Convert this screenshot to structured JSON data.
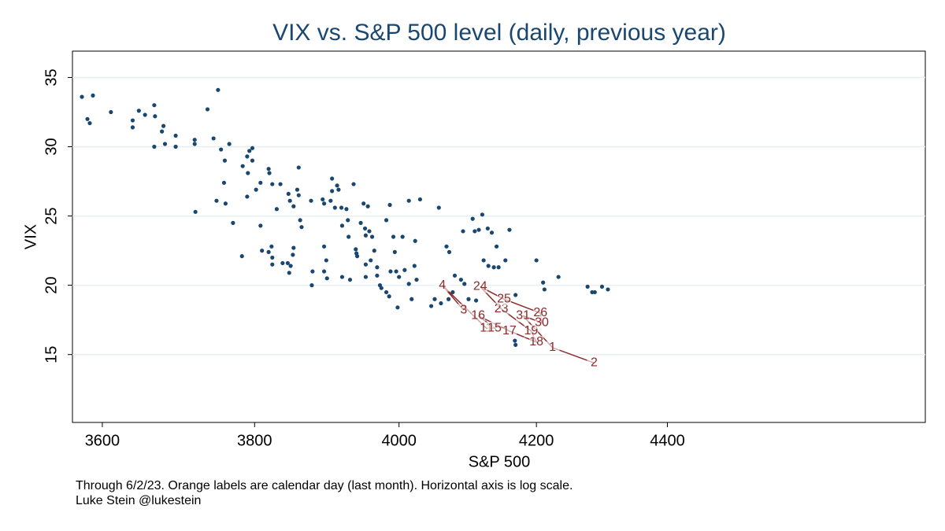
{
  "chart_data": {
    "type": "scatter",
    "title": "VIX vs. S&P 500 level (daily, previous year)",
    "x_label": "S&P 500",
    "y_label": "VIX",
    "notes": [
      "Through 6/2/23. Orange labels are calendar day (last month). Horizontal axis is log scale.",
      "Luke Stein @lukestein"
    ],
    "xscale": "log",
    "grid": true,
    "xlim": [
      3562,
      4822
    ],
    "ylim": [
      10.1,
      36.9
    ],
    "xticks": [
      3600,
      3800,
      4000,
      4200,
      4400
    ],
    "yticks": [
      15,
      20,
      25,
      30,
      35
    ],
    "series": [
      {
        "color": "#1a476f",
        "x": [
          3574,
          3588,
          3581,
          3584,
          3611,
          3639,
          3639,
          3647,
          3655,
          3667,
          3668,
          3677,
          3679,
          3667,
          3681,
          3695,
          3695,
          3720,
          3720,
          3721,
          3737,
          3751,
          3745,
          3755,
          3766,
          3760,
          3759,
          3749,
          3761,
          3771,
          3783,
          3784,
          3790,
          3793,
          3797,
          3797,
          3791,
          3790,
          3802,
          3808,
          3808,
          3819,
          3820,
          3824,
          3810,
          3819,
          3823,
          3824,
          3824,
          3830,
          3835,
          3838,
          3845,
          3846,
          3848,
          3853,
          3853,
          3852,
          3849,
          3847,
          3860,
          3858,
          3860,
          3862,
          3864,
          3877,
          3879,
          3878,
          3893,
          3895,
          3895,
          3898,
          3895,
          3899,
          3906,
          3906,
          3904,
          3910,
          3913,
          3915,
          3919,
          3920,
          3920,
          3926,
          3928,
          3929,
          3931,
          3936,
          3939,
          3940,
          3941,
          3946,
          3950,
          3952,
          3953,
          3953,
          3953,
          3956,
          3958,
          3962,
          3960,
          3965,
          3969,
          3969,
          3973,
          3975,
          3982,
          3982,
          3986,
          3987,
          3988,
          3992,
          3994,
          3996,
          3998,
          4000,
          4005,
          4008,
          4014,
          4014,
          4018,
          4022,
          4023,
          4030,
          4025,
          4046,
          4051,
          4057,
          4060,
          4068,
          4072,
          4071,
          4077,
          4080,
          4089,
          4092,
          4094,
          4100,
          4106,
          4109,
          4111,
          4115,
          4120,
          4122,
          4128,
          4134,
          4129,
          4137,
          4141,
          4144,
          4154,
          4160,
          4169,
          4169,
          4168,
          4200,
          4210,
          4212,
          4233,
          4277,
          4284,
          4288,
          4299,
          4308
        ],
        "y": [
          33.6,
          33.7,
          32.0,
          31.7,
          32.5,
          31.9,
          31.4,
          32.6,
          32.3,
          33.0,
          32.2,
          31.1,
          31.5,
          30.0,
          30.2,
          30.8,
          30.0,
          30.5,
          30.2,
          25.3,
          32.7,
          34.1,
          30.6,
          29.8,
          30.2,
          29.0,
          27.4,
          26.1,
          25.9,
          24.5,
          22.1,
          28.6,
          29.3,
          29.7,
          29.9,
          29.0,
          28.1,
          26.4,
          26.9,
          24.3,
          27.4,
          28.4,
          28.1,
          27.3,
          22.5,
          22.4,
          22.8,
          22.0,
          21.5,
          25.5,
          27.3,
          21.6,
          21.6,
          26.6,
          26.1,
          25.7,
          22.7,
          22.2,
          21.4,
          20.9,
          28.5,
          26.9,
          26.5,
          24.7,
          24.2,
          26.1,
          21.0,
          20.0,
          26.2,
          25.9,
          22.8,
          21.8,
          21.0,
          20.5,
          27.7,
          26.8,
          26.1,
          25.6,
          27.2,
          26.9,
          25.6,
          24.3,
          20.6,
          25.5,
          24.7,
          23.5,
          20.4,
          27.3,
          22.6,
          22.3,
          22.1,
          24.5,
          25.9,
          24.1,
          23.6,
          21.5,
          20.6,
          25.7,
          23.9,
          23.5,
          21.8,
          22.5,
          21.3,
          20.7,
          20.0,
          19.8,
          24.7,
          19.5,
          19.2,
          25.8,
          21.0,
          23.5,
          22.4,
          21.0,
          18.4,
          20.6,
          23.5,
          21.1,
          26.1,
          20.1,
          19.0,
          21.4,
          23.2,
          26.2,
          20.4,
          18.5,
          19.0,
          25.6,
          18.7,
          22.8,
          22.4,
          19.0,
          19.5,
          20.7,
          20.4,
          23.9,
          20.1,
          19.0,
          24.8,
          23.9,
          18.9,
          24.0,
          25.1,
          21.8,
          24.1,
          23.8,
          21.4,
          21.3,
          22.8,
          21.3,
          21.8,
          24.0,
          19.3,
          15.7,
          16.0,
          21.8,
          20.2,
          19.7,
          20.6,
          19.9,
          19.5,
          19.5,
          19.9,
          19.7
        ]
      },
      {
        "color": "#8b2a2a",
        "x": [
          4093,
          4062,
          4126,
          4138,
          4114,
          4160,
          4200,
          4192,
          4148,
          4117,
          4152,
          4206,
          4208,
          4180,
          4224,
          4287
        ],
        "y": [
          18.2,
          20.0,
          16.9,
          16.9,
          17.8,
          16.7,
          15.9,
          16.7,
          18.3,
          19.9,
          19.0,
          18.0,
          17.3,
          17.8,
          15.5,
          14.4
        ],
        "labels": [
          "3",
          "4",
          "11",
          "15",
          "16",
          "17",
          "18",
          "19",
          "23",
          "24",
          "25",
          "26",
          "30",
          "31",
          "1",
          "2"
        ]
      }
    ]
  }
}
